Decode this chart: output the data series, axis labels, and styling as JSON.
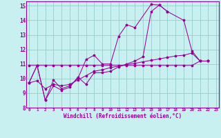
{
  "bg_color": "#c8f0f0",
  "grid_color": "#99cccc",
  "line_color": "#990099",
  "xlim": [
    -0.3,
    23.3
  ],
  "ylim": [
    8,
    15.3
  ],
  "xticks": [
    0,
    1,
    2,
    3,
    4,
    5,
    6,
    7,
    8,
    9,
    10,
    11,
    12,
    13,
    14,
    15,
    16,
    17,
    18,
    19,
    20,
    21,
    22,
    23
  ],
  "yticks": [
    8,
    9,
    10,
    11,
    12,
    13,
    14,
    15
  ],
  "xlabel": "Windchill (Refroidissement éolien,°C)",
  "s1x": [
    0,
    1,
    2,
    3,
    4,
    5,
    6,
    7,
    8,
    9,
    10,
    11,
    12,
    13,
    15,
    16,
    17,
    19,
    20,
    21,
    22
  ],
  "s1y": [
    9.7,
    10.9,
    8.5,
    9.9,
    9.3,
    9.5,
    10.0,
    11.3,
    11.6,
    11.0,
    11.0,
    12.9,
    13.7,
    13.5,
    15.1,
    15.05,
    14.6,
    14.0,
    11.9,
    11.2,
    11.2
  ],
  "s2x": [
    0,
    1,
    2,
    3,
    4,
    5,
    6,
    7,
    8,
    9,
    10,
    11,
    12,
    13,
    14,
    15,
    16,
    17
  ],
  "s2y": [
    9.7,
    10.9,
    8.5,
    9.5,
    9.2,
    9.4,
    10.1,
    9.6,
    10.4,
    10.4,
    10.5,
    10.8,
    11.0,
    11.2,
    11.5,
    14.6,
    15.05,
    14.6
  ],
  "s3x": [
    0,
    1,
    2,
    3,
    4,
    5,
    6,
    7,
    8,
    9,
    10,
    11,
    12,
    13,
    14,
    15,
    16,
    17,
    18,
    19,
    20,
    21,
    22
  ],
  "s3y": [
    10.9,
    10.9,
    10.9,
    10.9,
    10.9,
    10.9,
    10.9,
    10.9,
    10.9,
    10.9,
    10.9,
    10.9,
    10.9,
    10.9,
    10.9,
    10.9,
    10.9,
    10.9,
    10.9,
    10.9,
    10.9,
    11.2,
    11.2
  ],
  "s4x": [
    0,
    1,
    2,
    3,
    4,
    5,
    6,
    7,
    8,
    9,
    10,
    11,
    12,
    13,
    14,
    15,
    16,
    17,
    18,
    19,
    20,
    21,
    22
  ],
  "s4y": [
    9.7,
    9.85,
    9.3,
    9.6,
    9.5,
    9.6,
    9.9,
    10.2,
    10.5,
    10.6,
    10.75,
    10.85,
    10.95,
    11.05,
    11.15,
    11.25,
    11.35,
    11.45,
    11.55,
    11.6,
    11.75,
    11.2,
    11.2
  ]
}
